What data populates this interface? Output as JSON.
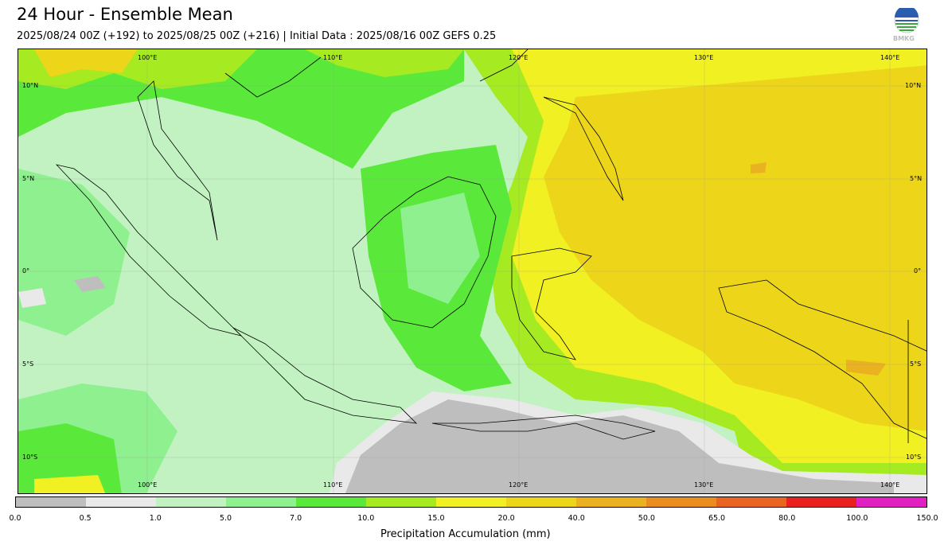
{
  "header": {
    "title": "24 Hour - Ensemble Mean",
    "subtitle": "2025/08/24 00Z (+192) to 2025/08/25 00Z (+216) | Initial Data : 2025/08/16 00Z GEFS 0.25",
    "logo_text": "BMKG"
  },
  "map": {
    "lon_labels": [
      "100°E",
      "110°E",
      "120°E",
      "130°E",
      "140°E"
    ],
    "lat_labels": [
      "10°N",
      "5°N",
      "0°",
      "5°S",
      "10°S"
    ],
    "extent": {
      "lon": [
        93,
        142
      ],
      "lat": [
        -12,
        11.5
      ]
    }
  },
  "colorbar": {
    "title": "Precipitation Accumulation (mm)",
    "boundaries": [
      "0.0",
      "0.5",
      "1.0",
      "5.0",
      "7.0",
      "10.0",
      "15.0",
      "20.0",
      "40.0",
      "50.0",
      "65.0",
      "80.0",
      "100.0",
      "150.0"
    ],
    "colors": [
      "#bebebe",
      "#e9e9e9",
      "#c2f2c2",
      "#8ef08e",
      "#5ae83a",
      "#a6ea22",
      "#f0f022",
      "#edd51a",
      "#eab220",
      "#ea8c20",
      "#e86420",
      "#e82020",
      "#e020c0"
    ]
  },
  "colors": {
    "grey": "#bebebe",
    "lightgrey": "#e9e9e9",
    "palegreen": "#c2f2c2",
    "lightgreen": "#8ef08e",
    "green": "#5ae83a",
    "yellowgreen": "#a6ea22",
    "yellow": "#f0f022",
    "gold": "#edd51a",
    "orange": "#eab220"
  }
}
